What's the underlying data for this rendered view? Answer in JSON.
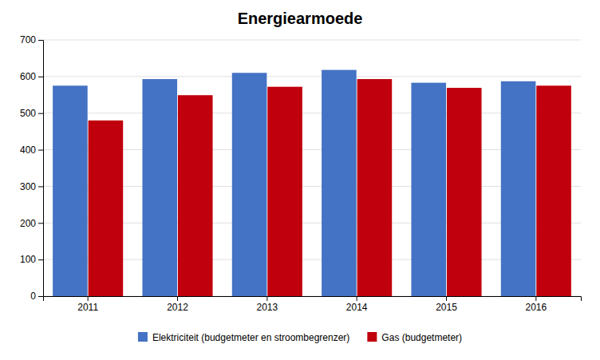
{
  "chart_data": {
    "type": "bar",
    "title": "Energiearmoede",
    "categories": [
      "2011",
      "2012",
      "2013",
      "2014",
      "2015",
      "2016"
    ],
    "series": [
      {
        "name": "Elektriciteit (budgetmeter en stroombegrenzer)",
        "color": "#4472C4",
        "values": [
          575,
          593,
          610,
          618,
          583,
          587
        ]
      },
      {
        "name": "Gas (budgetmeter)",
        "color": "#C0000C",
        "values": [
          480,
          549,
          572,
          593,
          569,
          575
        ]
      }
    ],
    "ylim": [
      0,
      700
    ],
    "yticks": [
      0,
      100,
      200,
      300,
      400,
      500,
      600,
      700
    ],
    "grid": true,
    "legend": "bottom"
  }
}
